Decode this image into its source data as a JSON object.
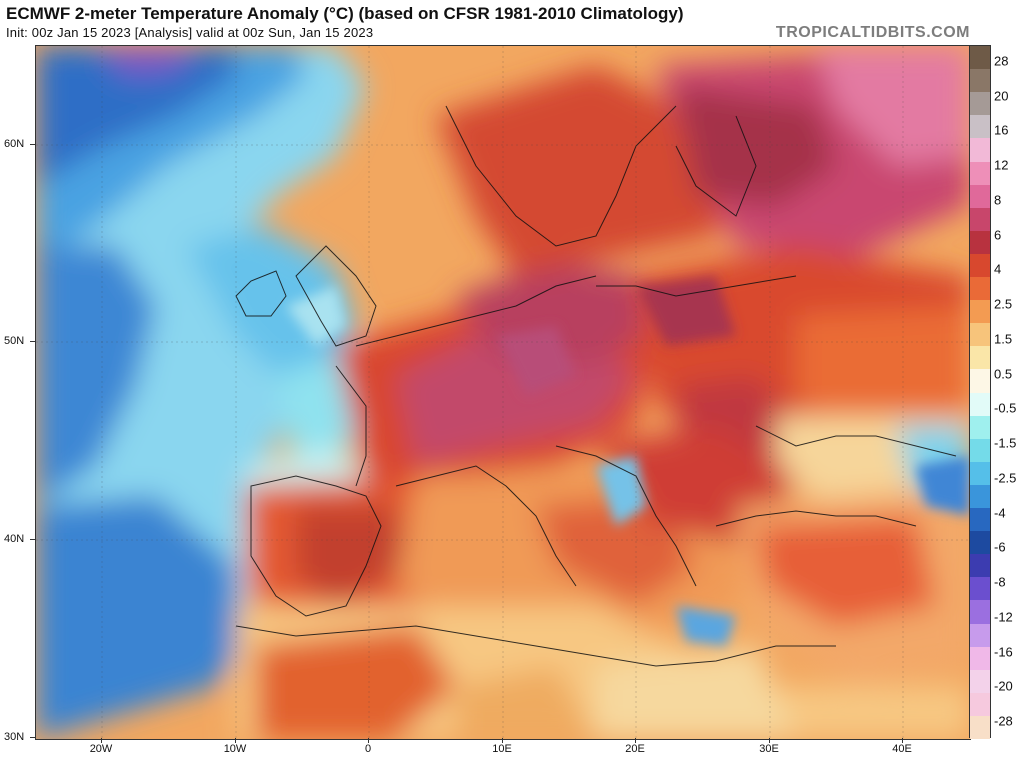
{
  "header": {
    "title": "ECMWF 2-meter Temperature Anomaly (°C) (based on CFSR 1981-2010 Climatology)",
    "subtitle": "Init: 00z Jan 15 2023   [Analysis]   valid at 00z Sun, Jan 15 2023",
    "brand": "TROPICALTIDBITS.COM"
  },
  "map": {
    "region": "Europe / North Africa",
    "variable": "2-meter temperature anomaly",
    "lat_range": [
      30,
      65
    ],
    "lon_range": [
      -25,
      45
    ],
    "lat_labels": [
      "60N",
      "50N",
      "40N",
      "30N"
    ],
    "lon_labels": [
      "20W",
      "10W",
      "0",
      "10E",
      "20E",
      "30E",
      "40E"
    ]
  },
  "colorbar": {
    "labels": [
      "28",
      "20",
      "16",
      "12",
      "8",
      "6",
      "4",
      "2.5",
      "1.5",
      "0.5",
      "-0.5",
      "-1.5",
      "-2.5",
      "-4",
      "-6",
      "-8",
      "-12",
      "-16",
      "-20",
      "-28"
    ],
    "colors": [
      "#6e5a47",
      "#8a7767",
      "#a59a96",
      "#c9c0c6",
      "#f2b9d7",
      "#ee8fb8",
      "#e0699a",
      "#c8466b",
      "#b8323f",
      "#d8482e",
      "#ea6a37",
      "#f39b52",
      "#f7c47b",
      "#fae6a8",
      "#fdf7e6",
      "#e2fbf8",
      "#9ff0ee",
      "#74dbe9",
      "#55bfe9",
      "#3a95db",
      "#2868c0",
      "#1d4aa0",
      "#3c3cb0",
      "#6b4fcf",
      "#9b6fe0",
      "#c79bec",
      "#f0b8e8",
      "#f3d2ea",
      "#f6c9de",
      "#f8dfc8"
    ]
  }
}
